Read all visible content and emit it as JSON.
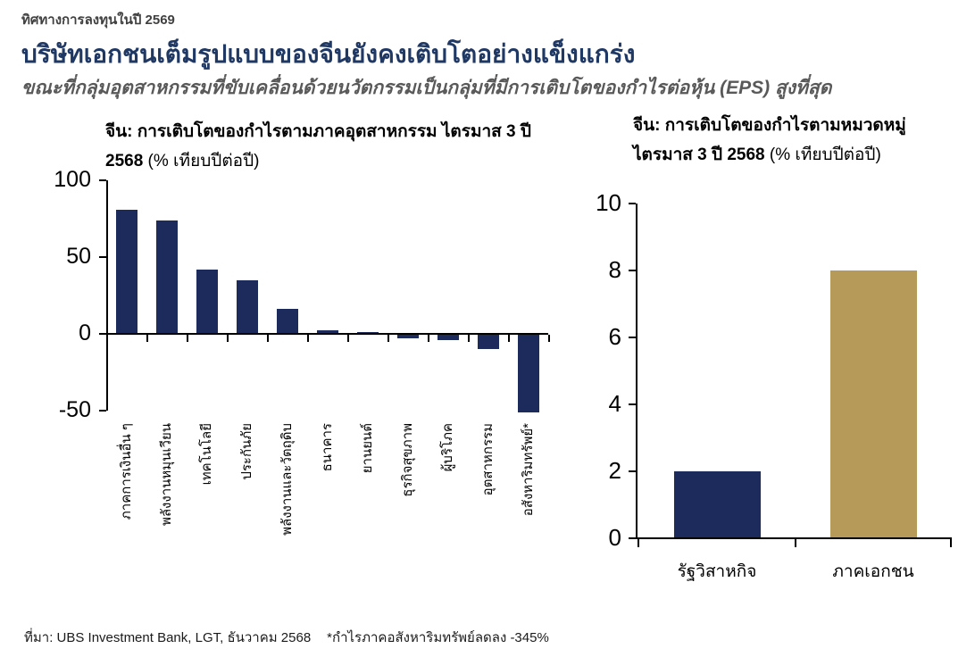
{
  "page": {
    "eyebrow": "ทิศทางการลงทุนในปี 2569",
    "title": "บริษัทเอกชนเต็มรูปแบบของจีนยังคงเติบโตอย่างแข็งแกร่ง",
    "subtitle_prefix": "ขณะที่กลุ่มอุตสาหกรรมที่ขับเคลื่อนด้วยนวัตกรรมเป็นกลุ่มที่มีการเติบโตของกำไรต่อหุ้น ",
    "subtitle_emphasis": "(EPS)",
    "subtitle_suffix": " สูงที่สุด",
    "source": "ที่มา: UBS Investment Bank, LGT, ธันวาคม 2568",
    "footnote": "*กำไรภาคอสังหาริมทรัพย์ลดลง -345%"
  },
  "colors": {
    "navy": "#1d2a5c",
    "gold": "#b59a5a",
    "title_navy": "#1f3864",
    "subtitle_gray": "#595959",
    "axis_black": "#000000"
  },
  "chart_data": [
    {
      "type": "bar",
      "title_line1": "จีน: การเติบโตของกำไรตามภาคอุตสาหกรรม ไตรมาส 3 ปี",
      "title_line2_bold": "2568",
      "title_line2_normal": " (% เทียบปีต่อปี)",
      "categories": [
        "ภาคการเงินอื่น ๆ",
        "พลังงานหมุนเวียน",
        "เทคโนโลยี",
        "ประกันภัย",
        "พลังงานและวัตถุดิบ",
        "ธนาคาร",
        "ยานยนต์",
        "ธุรกิจสุขภาพ",
        "ผู้บริโภค",
        "อุตสาหกรรม",
        "อสังหาริมทรัพย์*"
      ],
      "values": [
        81,
        74,
        42,
        35,
        16,
        2.5,
        1,
        -3,
        -4,
        -10,
        -51
      ],
      "ylim": [
        -50,
        100
      ],
      "yticks": [
        100,
        50,
        0,
        -50
      ],
      "bar_color": "#1d2a5c",
      "grid": false,
      "legend": "none"
    },
    {
      "type": "bar",
      "title_line1": "จีน: การเติบโตของกำไรตามหมวดหมู่",
      "title_line2_bold": "ไตรมาส 3 ปี 2568",
      "title_line2_normal": " (% เทียบปีต่อปี)",
      "categories": [
        "รัฐวิสาหกิจ",
        "ภาคเอกชน"
      ],
      "values": [
        2,
        8
      ],
      "bar_colors": [
        "#1d2a5c",
        "#b59a5a"
      ],
      "ylim": [
        0,
        10
      ],
      "yticks": [
        0,
        2,
        4,
        6,
        8,
        10
      ],
      "grid": false,
      "legend": "none"
    }
  ]
}
